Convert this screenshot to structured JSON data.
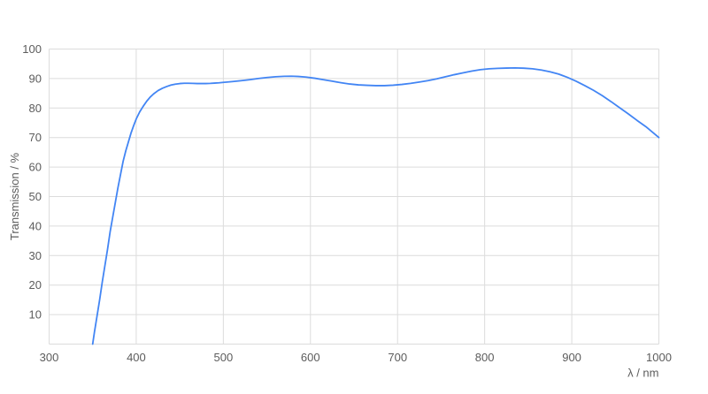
{
  "chart_data": {
    "type": "line",
    "title": "",
    "xlabel": "λ / nm",
    "ylabel": "Transmission / %",
    "xlim": [
      300,
      1000
    ],
    "ylim": [
      0,
      100
    ],
    "xticks": [
      300,
      400,
      500,
      600,
      700,
      800,
      900,
      1000
    ],
    "yticks": [
      10,
      20,
      30,
      40,
      50,
      60,
      70,
      80,
      90,
      100
    ],
    "grid": true,
    "legend_position": "none",
    "series": [
      {
        "name": "Transmission",
        "color": "#4285f4",
        "points": [
          [
            350,
            0
          ],
          [
            352,
            4
          ],
          [
            355,
            9.5
          ],
          [
            358,
            15
          ],
          [
            361,
            21
          ],
          [
            364,
            26.5
          ],
          [
            367,
            32
          ],
          [
            370,
            38
          ],
          [
            373,
            43
          ],
          [
            376,
            48
          ],
          [
            379,
            53
          ],
          [
            382,
            57.5
          ],
          [
            385,
            62
          ],
          [
            388,
            65.5
          ],
          [
            391,
            68.5
          ],
          [
            394,
            71.5
          ],
          [
            397,
            74
          ],
          [
            400,
            76.3
          ],
          [
            404,
            78.7
          ],
          [
            408,
            80.6
          ],
          [
            412,
            82.3
          ],
          [
            416,
            83.7
          ],
          [
            420,
            84.8
          ],
          [
            425,
            85.9
          ],
          [
            430,
            86.7
          ],
          [
            435,
            87.3
          ],
          [
            440,
            87.8
          ],
          [
            445,
            88.1
          ],
          [
            450,
            88.3
          ],
          [
            455,
            88.4
          ],
          [
            460,
            88.4
          ],
          [
            465,
            88.35
          ],
          [
            470,
            88.3
          ],
          [
            475,
            88.3
          ],
          [
            480,
            88.3
          ],
          [
            485,
            88.35
          ],
          [
            490,
            88.45
          ],
          [
            495,
            88.55
          ],
          [
            500,
            88.7
          ],
          [
            510,
            88.95
          ],
          [
            520,
            89.25
          ],
          [
            530,
            89.6
          ],
          [
            540,
            90.0
          ],
          [
            550,
            90.35
          ],
          [
            560,
            90.6
          ],
          [
            570,
            90.75
          ],
          [
            578,
            90.8
          ],
          [
            586,
            90.7
          ],
          [
            595,
            90.5
          ],
          [
            605,
            90.1
          ],
          [
            615,
            89.6
          ],
          [
            625,
            89.1
          ],
          [
            635,
            88.6
          ],
          [
            645,
            88.15
          ],
          [
            655,
            87.85
          ],
          [
            665,
            87.7
          ],
          [
            675,
            87.6
          ],
          [
            685,
            87.6
          ],
          [
            695,
            87.75
          ],
          [
            705,
            88.0
          ],
          [
            715,
            88.35
          ],
          [
            725,
            88.8
          ],
          [
            735,
            89.3
          ],
          [
            745,
            89.9
          ],
          [
            755,
            90.6
          ],
          [
            765,
            91.3
          ],
          [
            775,
            91.9
          ],
          [
            785,
            92.5
          ],
          [
            795,
            93.0
          ],
          [
            805,
            93.3
          ],
          [
            815,
            93.45
          ],
          [
            825,
            93.55
          ],
          [
            835,
            93.6
          ],
          [
            845,
            93.5
          ],
          [
            855,
            93.3
          ],
          [
            865,
            92.9
          ],
          [
            875,
            92.3
          ],
          [
            885,
            91.5
          ],
          [
            895,
            90.4
          ],
          [
            905,
            89.1
          ],
          [
            915,
            87.6
          ],
          [
            925,
            86.0
          ],
          [
            935,
            84.2
          ],
          [
            945,
            82.2
          ],
          [
            955,
            80.1
          ],
          [
            965,
            78.0
          ],
          [
            975,
            75.8
          ],
          [
            985,
            73.7
          ],
          [
            1000,
            70.0
          ]
        ]
      }
    ]
  },
  "colors": {
    "line": "#4285f4",
    "grid": "#dcdcdc",
    "text": "#5c5c5c",
    "background": "#ffffff"
  }
}
